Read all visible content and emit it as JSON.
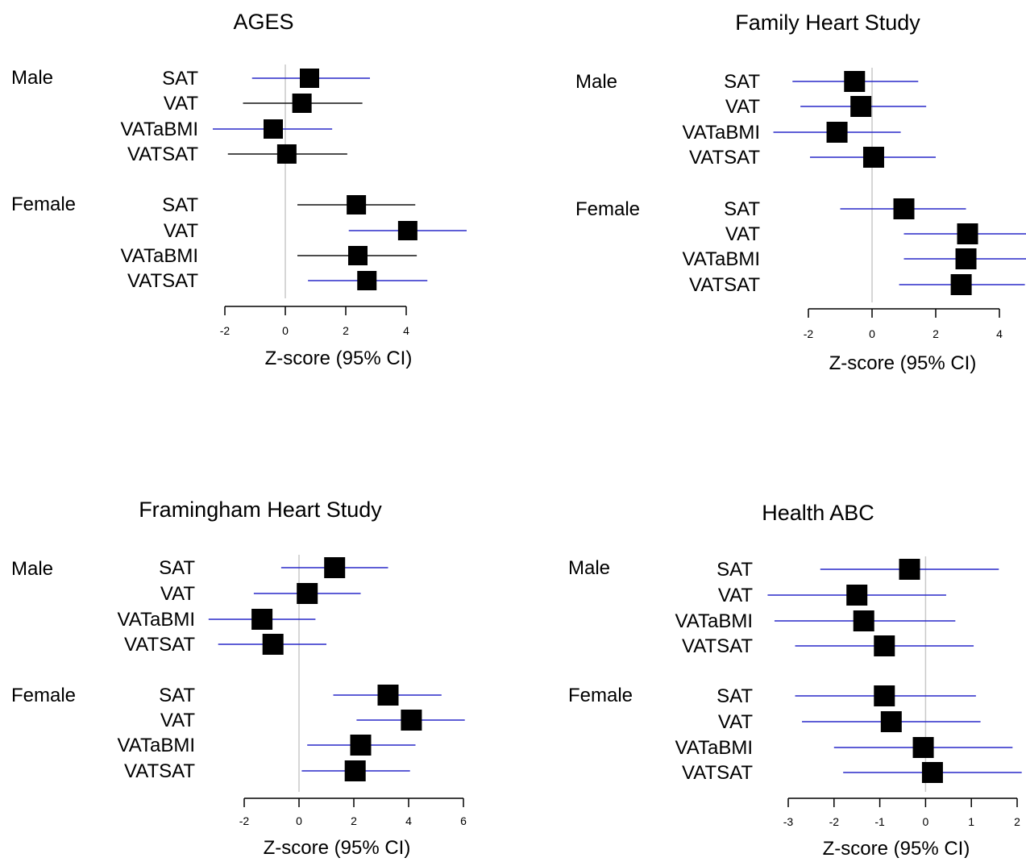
{
  "chart_data": [
    {
      "type": "forest",
      "title": "AGES",
      "xlabel": "Z-score (95% CI)",
      "xlim": [
        -2,
        4
      ],
      "xticks": [
        -2,
        0,
        2,
        4
      ],
      "groups": [
        {
          "name": "Male",
          "rows": [
            {
              "label": "SAT",
              "estimate": 0.8,
              "ci_low": -1.1,
              "ci_high": 2.8,
              "ci_color": "#2828c8"
            },
            {
              "label": "VAT",
              "estimate": 0.55,
              "ci_low": -1.4,
              "ci_high": 2.55,
              "ci_color": "#111111"
            },
            {
              "label": "VATaBMI",
              "estimate": -0.4,
              "ci_low": -2.4,
              "ci_high": 1.55,
              "ci_color": "#2828c8"
            },
            {
              "label": "VATSAT",
              "estimate": 0.05,
              "ci_low": -1.9,
              "ci_high": 2.05,
              "ci_color": "#111111"
            }
          ]
        },
        {
          "name": "Female",
          "rows": [
            {
              "label": "SAT",
              "estimate": 2.35,
              "ci_low": 0.4,
              "ci_high": 4.3,
              "ci_color": "#111111"
            },
            {
              "label": "VAT",
              "estimate": 4.05,
              "ci_low": 2.1,
              "ci_high": 6.0,
              "ci_color": "#2828c8"
            },
            {
              "label": "VATaBMI",
              "estimate": 2.4,
              "ci_low": 0.4,
              "ci_high": 4.35,
              "ci_color": "#111111"
            },
            {
              "label": "VATSAT",
              "estimate": 2.7,
              "ci_low": 0.75,
              "ci_high": 4.7,
              "ci_color": "#2828c8"
            }
          ]
        }
      ]
    },
    {
      "type": "forest",
      "title": "Family Heart Study",
      "xlabel": "Z-score (95% CI)",
      "xlim": [
        -2,
        4
      ],
      "xticks": [
        -2,
        0,
        2,
        4
      ],
      "groups": [
        {
          "name": "Male",
          "rows": [
            {
              "label": "SAT",
              "estimate": -0.55,
              "ci_low": -2.5,
              "ci_high": 1.45,
              "ci_color": "#2828c8"
            },
            {
              "label": "VAT",
              "estimate": -0.35,
              "ci_low": -2.25,
              "ci_high": 1.7,
              "ci_color": "#2828c8"
            },
            {
              "label": "VATaBMI",
              "estimate": -1.1,
              "ci_low": -3.1,
              "ci_high": 0.9,
              "ci_color": "#2828c8"
            },
            {
              "label": "VATSAT",
              "estimate": 0.05,
              "ci_low": -1.95,
              "ci_high": 2.0,
              "ci_color": "#2828c8"
            }
          ]
        },
        {
          "name": "Female",
          "rows": [
            {
              "label": "SAT",
              "estimate": 1.0,
              "ci_low": -1.0,
              "ci_high": 2.95,
              "ci_color": "#2828c8"
            },
            {
              "label": "VAT",
              "estimate": 3.0,
              "ci_low": 1.0,
              "ci_high": 5.0,
              "ci_color": "#2828c8"
            },
            {
              "label": "VATaBMI",
              "estimate": 2.95,
              "ci_low": 1.0,
              "ci_high": 4.95,
              "ci_color": "#2828c8"
            },
            {
              "label": "VATSAT",
              "estimate": 2.8,
              "ci_low": 0.85,
              "ci_high": 4.8,
              "ci_color": "#2828c8"
            }
          ]
        }
      ]
    },
    {
      "type": "forest",
      "title": "Framingham Heart Study",
      "xlabel": "Z-score (95% CI)",
      "xlim": [
        -2,
        6
      ],
      "xticks": [
        -2,
        0,
        2,
        4,
        6
      ],
      "groups": [
        {
          "name": "Male",
          "rows": [
            {
              "label": "SAT",
              "estimate": 1.3,
              "ci_low": -0.65,
              "ci_high": 3.25,
              "ci_color": "#2828c8"
            },
            {
              "label": "VAT",
              "estimate": 0.3,
              "ci_low": -1.65,
              "ci_high": 2.25,
              "ci_color": "#2828c8"
            },
            {
              "label": "VATaBMI",
              "estimate": -1.35,
              "ci_low": -3.3,
              "ci_high": 0.6,
              "ci_color": "#2828c8"
            },
            {
              "label": "VATSAT",
              "estimate": -0.95,
              "ci_low": -2.95,
              "ci_high": 1.0,
              "ci_color": "#2828c8"
            }
          ]
        },
        {
          "name": "Female",
          "rows": [
            {
              "label": "SAT",
              "estimate": 3.25,
              "ci_low": 1.25,
              "ci_high": 5.2,
              "ci_color": "#2828c8"
            },
            {
              "label": "VAT",
              "estimate": 4.1,
              "ci_low": 2.1,
              "ci_high": 6.05,
              "ci_color": "#2828c8"
            },
            {
              "label": "VATaBMI",
              "estimate": 2.25,
              "ci_low": 0.3,
              "ci_high": 4.25,
              "ci_color": "#2828c8"
            },
            {
              "label": "VATSAT",
              "estimate": 2.05,
              "ci_low": 0.1,
              "ci_high": 4.05,
              "ci_color": "#2828c8"
            }
          ]
        }
      ]
    },
    {
      "type": "forest",
      "title": "Health ABC",
      "xlabel": "Z-score (95% CI)",
      "xlim": [
        -3,
        2
      ],
      "xticks": [
        -3,
        -2,
        -1,
        0,
        1,
        2
      ],
      "groups": [
        {
          "name": "Male",
          "rows": [
            {
              "label": "SAT",
              "estimate": -0.35,
              "ci_low": -2.3,
              "ci_high": 1.6,
              "ci_color": "#2828c8"
            },
            {
              "label": "VAT",
              "estimate": -1.5,
              "ci_low": -3.45,
              "ci_high": 0.45,
              "ci_color": "#2828c8"
            },
            {
              "label": "VATaBMI",
              "estimate": -1.35,
              "ci_low": -3.3,
              "ci_high": 0.65,
              "ci_color": "#2828c8"
            },
            {
              "label": "VATSAT",
              "estimate": -0.9,
              "ci_low": -2.85,
              "ci_high": 1.05,
              "ci_color": "#2828c8"
            }
          ]
        },
        {
          "name": "Female",
          "rows": [
            {
              "label": "SAT",
              "estimate": -0.9,
              "ci_low": -2.85,
              "ci_high": 1.1,
              "ci_color": "#2828c8"
            },
            {
              "label": "VAT",
              "estimate": -0.75,
              "ci_low": -2.7,
              "ci_high": 1.2,
              "ci_color": "#2828c8"
            },
            {
              "label": "VATaBMI",
              "estimate": -0.05,
              "ci_low": -2.0,
              "ci_high": 1.9,
              "ci_color": "#2828c8"
            },
            {
              "label": "VATSAT",
              "estimate": 0.15,
              "ci_low": -1.8,
              "ci_high": 2.1,
              "ci_color": "#2828c8"
            }
          ]
        }
      ]
    }
  ]
}
